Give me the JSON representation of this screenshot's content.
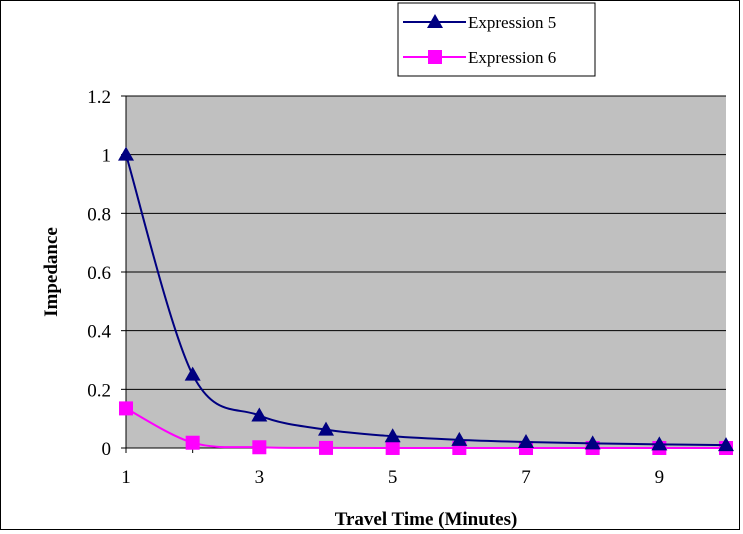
{
  "chart_data": {
    "type": "line",
    "title": "",
    "xlabel": "Travel Time (Minutes)",
    "ylabel": "Impedance",
    "x": [
      1,
      2,
      3,
      4,
      5,
      6,
      7,
      8,
      9,
      10
    ],
    "x_tick_labels": [
      "1",
      "3",
      "5",
      "7",
      "9"
    ],
    "x_tick_values": [
      1,
      3,
      5,
      7,
      9
    ],
    "xlim": [
      1,
      10
    ],
    "ylim": [
      0,
      1.2
    ],
    "y_ticks": [
      0,
      0.2,
      0.4,
      0.6,
      0.8,
      1,
      1.2
    ],
    "y_tick_labels": [
      "0",
      "0.2",
      "0.4",
      "0.6",
      "0.8",
      "1",
      "1.2"
    ],
    "grid": "horizontal",
    "plot_background": "#c0c0c0",
    "legend_position": "top-right",
    "series": [
      {
        "name": "Expression 5",
        "color": "#000080",
        "marker": "triangle",
        "values": [
          1.0,
          0.25,
          0.111,
          0.0625,
          0.04,
          0.0278,
          0.0204,
          0.0156,
          0.0123,
          0.01
        ]
      },
      {
        "name": "Expression 6",
        "color": "#ff00ff",
        "marker": "square",
        "values": [
          0.135,
          0.018,
          0.0025,
          0.0003,
          0.0001,
          0.0,
          0.0,
          0.0,
          0.0,
          0.0
        ]
      }
    ]
  }
}
